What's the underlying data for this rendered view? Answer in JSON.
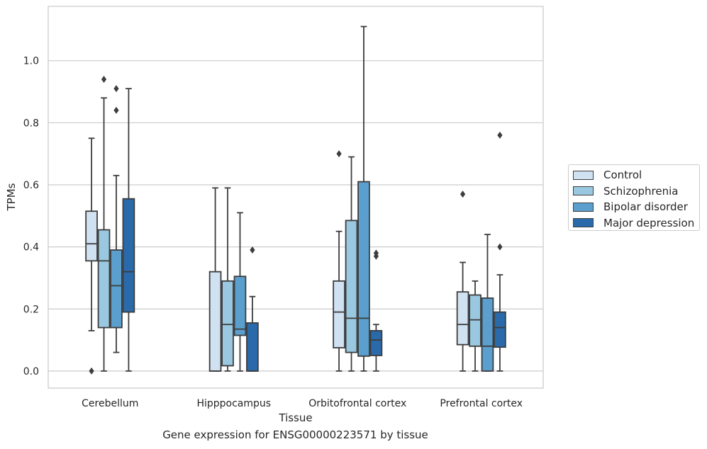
{
  "caption": "Gene expression for ENSG00000223571 by tissue",
  "chart_data": {
    "type": "box",
    "xlabel": "Tissue",
    "ylabel": "TPMs",
    "ylim": [
      -0.055,
      1.175
    ],
    "yticks": [
      0.0,
      0.2,
      0.4,
      0.6,
      0.8,
      1.0
    ],
    "ytick_labels": [
      "0.0",
      "0.2",
      "0.4",
      "0.6",
      "0.8",
      "1.0"
    ],
    "grid": "horizontal",
    "legend_position": "right",
    "categories": [
      "Cerebellum",
      "Hipppocampus",
      "Orbitofrontal cortex",
      "Prefrontal cortex"
    ],
    "series": [
      {
        "name": "Control",
        "color": "#d0e1f2",
        "boxes": [
          {
            "whislo": 0.13,
            "q1": 0.355,
            "med": 0.41,
            "q3": 0.515,
            "whishi": 0.75,
            "fliers": [
              0.0
            ]
          },
          {
            "whislo": 0.0,
            "q1": 0.0,
            "med": 0.0,
            "q3": 0.32,
            "whishi": 0.59,
            "fliers": []
          },
          {
            "whislo": 0.0,
            "q1": 0.075,
            "med": 0.19,
            "q3": 0.29,
            "whishi": 0.45,
            "fliers": [
              0.7
            ]
          },
          {
            "whislo": 0.0,
            "q1": 0.085,
            "med": 0.15,
            "q3": 0.255,
            "whishi": 0.35,
            "fliers": [
              0.57
            ]
          }
        ]
      },
      {
        "name": "Schizophrenia",
        "color": "#9ac8e0",
        "boxes": [
          {
            "whislo": 0.0,
            "q1": 0.14,
            "med": 0.355,
            "q3": 0.455,
            "whishi": 0.88,
            "fliers": [
              0.94
            ]
          },
          {
            "whislo": 0.0,
            "q1": 0.017,
            "med": 0.15,
            "q3": 0.29,
            "whishi": 0.59,
            "fliers": []
          },
          {
            "whislo": 0.0,
            "q1": 0.06,
            "med": 0.17,
            "q3": 0.485,
            "whishi": 0.69,
            "fliers": []
          },
          {
            "whislo": 0.0,
            "q1": 0.08,
            "med": 0.165,
            "q3": 0.245,
            "whishi": 0.29,
            "fliers": []
          }
        ]
      },
      {
        "name": "Bipolar disorder",
        "color": "#5a9fcd",
        "boxes": [
          {
            "whislo": 0.06,
            "q1": 0.14,
            "med": 0.275,
            "q3": 0.39,
            "whishi": 0.63,
            "fliers": [
              0.84,
              0.91
            ]
          },
          {
            "whislo": 0.0,
            "q1": 0.115,
            "med": 0.135,
            "q3": 0.305,
            "whishi": 0.51,
            "fliers": []
          },
          {
            "whislo": 0.0,
            "q1": 0.048,
            "med": 0.17,
            "q3": 0.61,
            "whishi": 1.11,
            "fliers": []
          },
          {
            "whislo": 0.0,
            "q1": 0.0,
            "med": 0.08,
            "q3": 0.235,
            "whishi": 0.44,
            "fliers": []
          }
        ]
      },
      {
        "name": "Major depression",
        "color": "#2a6aab",
        "boxes": [
          {
            "whislo": 0.0,
            "q1": 0.19,
            "med": 0.32,
            "q3": 0.555,
            "whishi": 0.91,
            "fliers": []
          },
          {
            "whislo": 0.0,
            "q1": 0.0,
            "med": 0.0,
            "q3": 0.155,
            "whishi": 0.24,
            "fliers": [
              0.39
            ]
          },
          {
            "whislo": 0.0,
            "q1": 0.05,
            "med": 0.1,
            "q3": 0.13,
            "whishi": 0.15,
            "fliers": [
              0.37,
              0.38
            ]
          },
          {
            "whislo": 0.0,
            "q1": 0.077,
            "med": 0.14,
            "q3": 0.19,
            "whishi": 0.31,
            "fliers": [
              0.4,
              0.76
            ]
          }
        ]
      }
    ]
  }
}
